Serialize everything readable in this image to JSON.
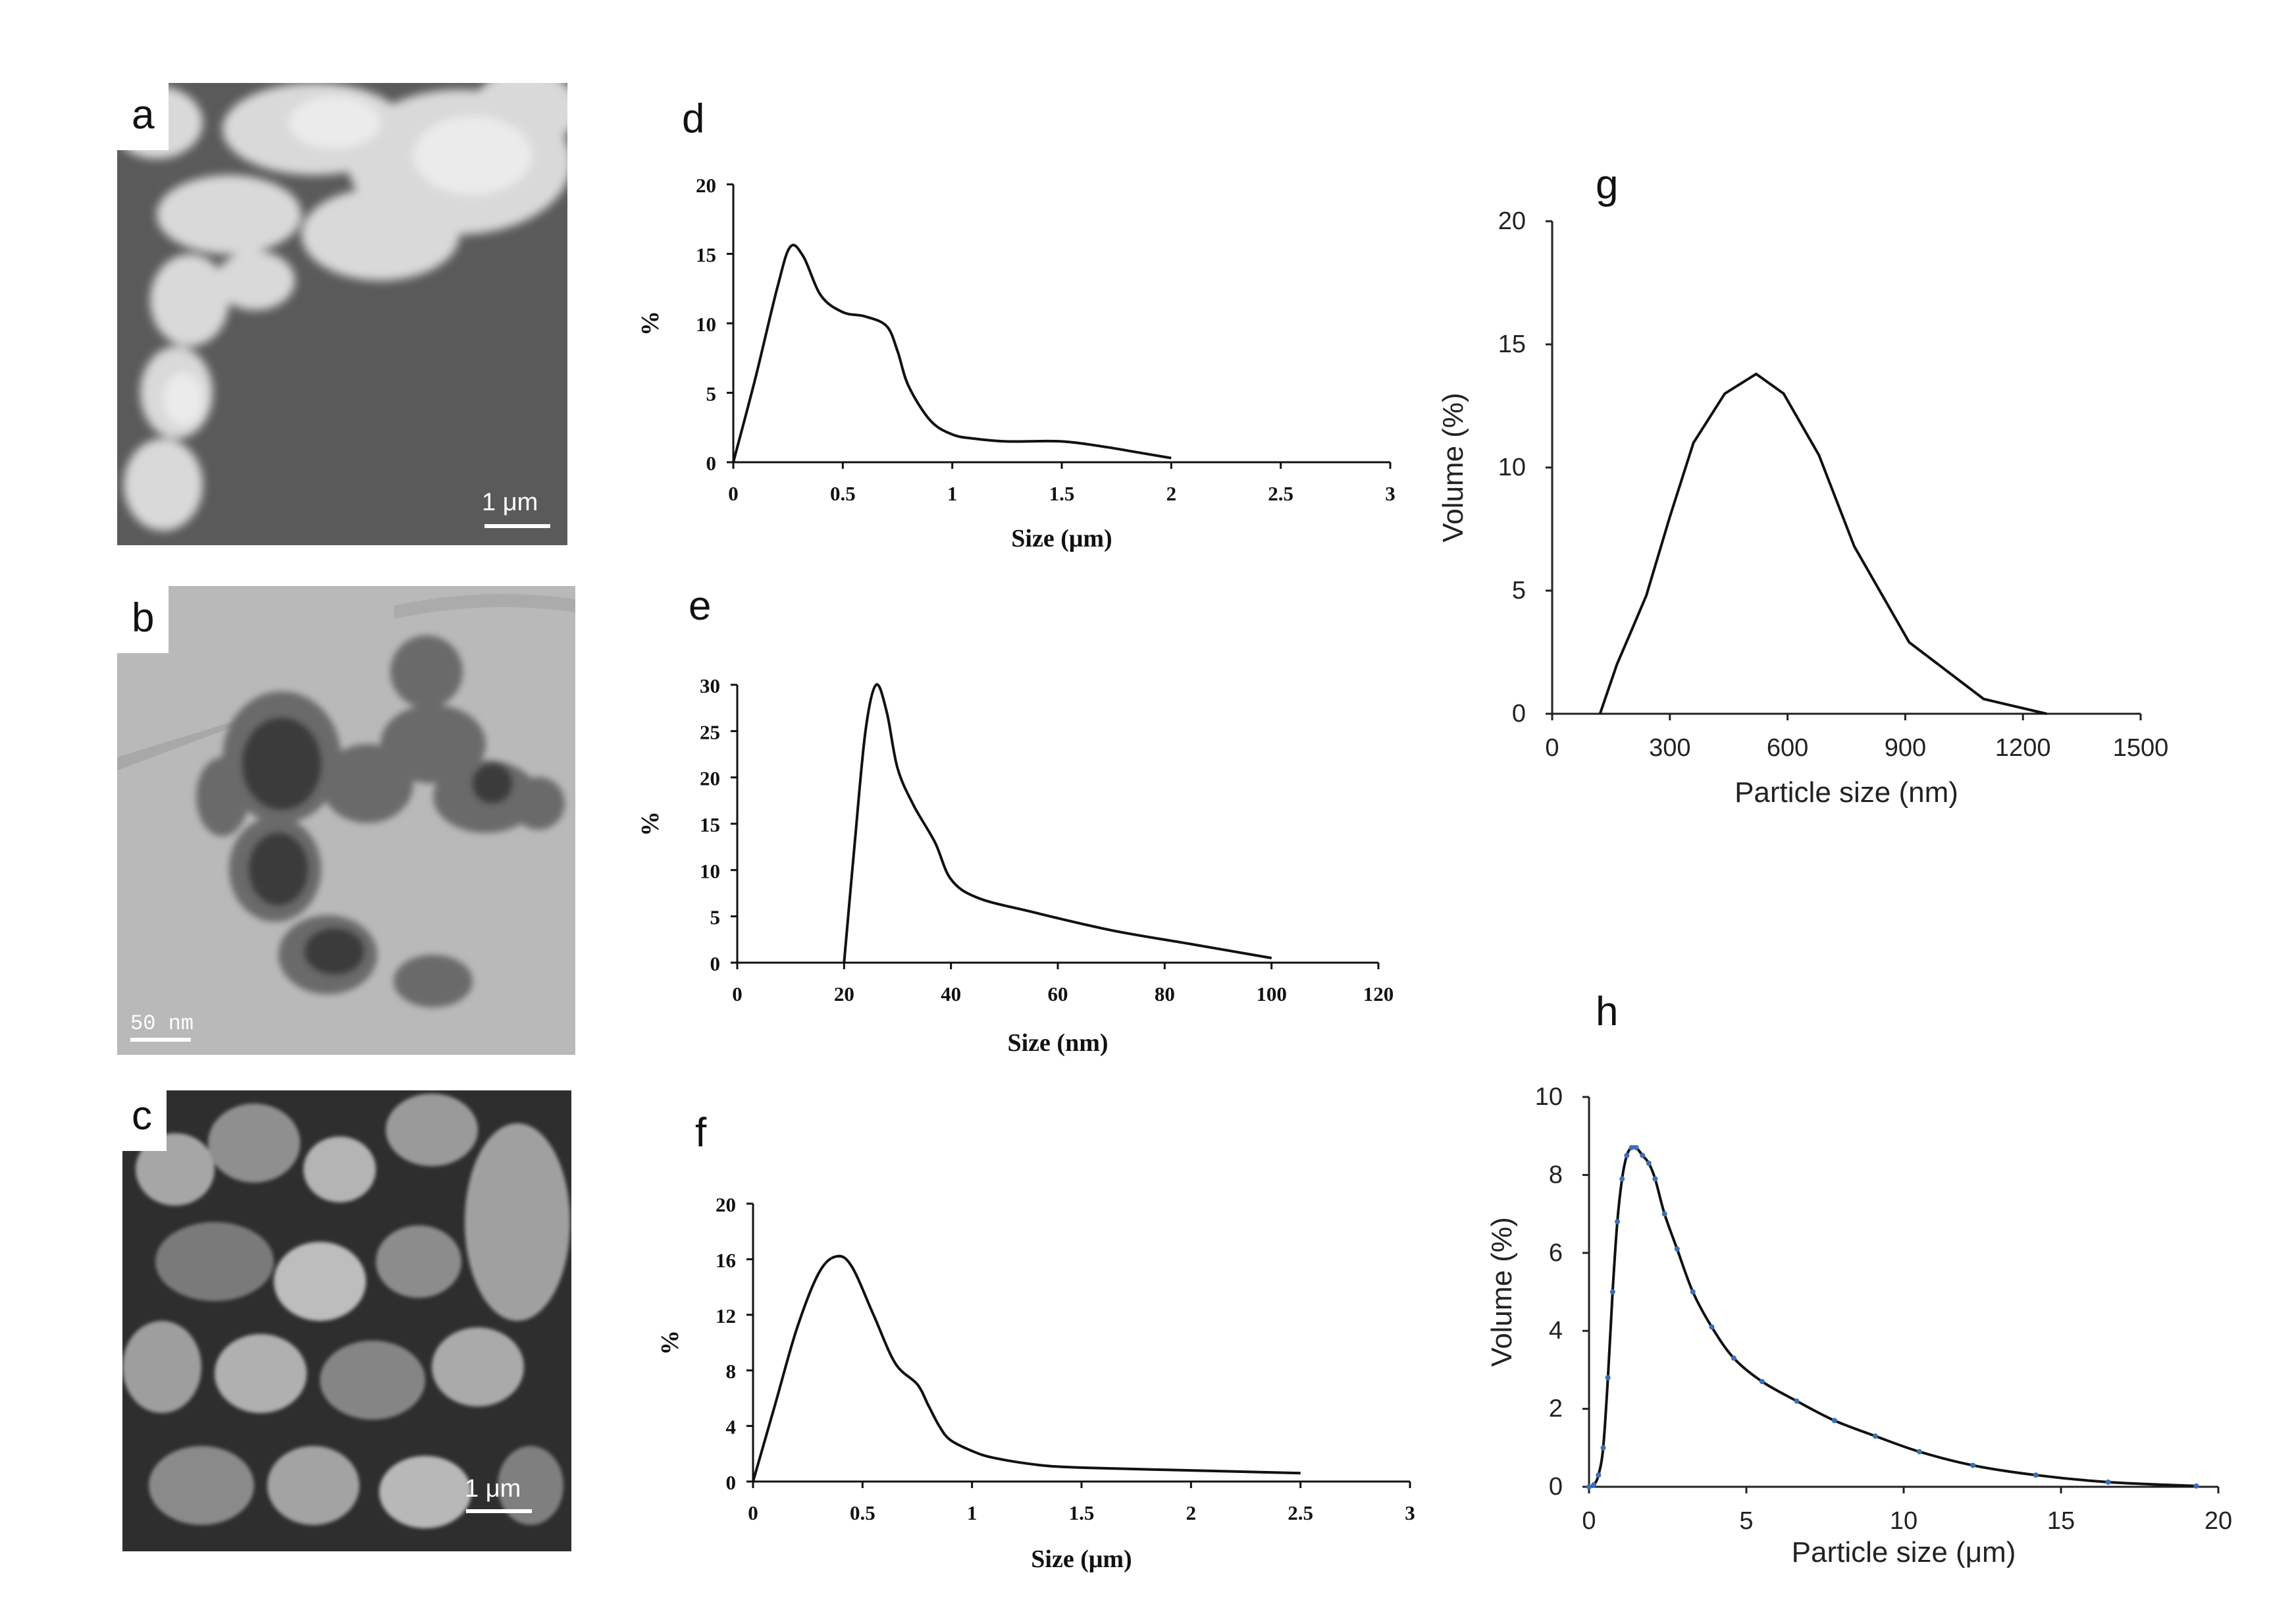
{
  "panels": {
    "a": {
      "label": "a",
      "scale": "1 μm"
    },
    "b": {
      "label": "b",
      "scale": "50 nm"
    },
    "c": {
      "label": "c",
      "scale": "1 μm"
    },
    "d": {
      "label": "d"
    },
    "e": {
      "label": "e"
    },
    "f": {
      "label": "f"
    },
    "g": {
      "label": "g"
    },
    "h": {
      "label": "h"
    }
  },
  "chart_data": [
    {
      "id": "d",
      "type": "line",
      "title": "",
      "xlabel": "Size (μm)",
      "ylabel": "%",
      "xlim": [
        0,
        3
      ],
      "ylim": [
        0,
        20
      ],
      "xticks": [
        0,
        0.5,
        1,
        1.5,
        2,
        2.5,
        3
      ],
      "xtick_labels": [
        "0",
        "0.5",
        "1",
        "1.5",
        "2",
        "2.5",
        "3"
      ],
      "yticks": [
        0,
        5,
        10,
        15,
        20
      ],
      "ytick_labels": [
        "0",
        "5",
        "10",
        "15",
        "20"
      ],
      "x": [
        0,
        0.1,
        0.2,
        0.26,
        0.32,
        0.4,
        0.5,
        0.6,
        0.7,
        0.75,
        0.8,
        0.9,
        1.0,
        1.1,
        1.25,
        1.5,
        1.7,
        1.85,
        2.0
      ],
      "y": [
        0,
        6,
        12.5,
        15.5,
        14.8,
        12,
        10.8,
        10.5,
        9.8,
        8,
        5.5,
        3,
        2,
        1.7,
        1.5,
        1.5,
        1.1,
        0.7,
        0.3
      ]
    },
    {
      "id": "e",
      "type": "line",
      "title": "",
      "xlabel": "Size (nm)",
      "ylabel": "%",
      "xlim": [
        0,
        120
      ],
      "ylim": [
        0,
        30
      ],
      "xticks": [
        0,
        20,
        40,
        60,
        80,
        100,
        120
      ],
      "xtick_labels": [
        "0",
        "20",
        "40",
        "60",
        "80",
        "100",
        "120"
      ],
      "yticks": [
        0,
        5,
        10,
        15,
        20,
        25,
        30
      ],
      "ytick_labels": [
        "0",
        "5",
        "10",
        "15",
        "20",
        "25",
        "30"
      ],
      "x": [
        20,
        22,
        24,
        26,
        28,
        30,
        33,
        37,
        40,
        45,
        55,
        70,
        85,
        100
      ],
      "y": [
        0,
        13,
        25,
        30,
        27,
        21,
        17,
        13,
        9,
        7,
        5.5,
        3.5,
        2,
        0.5
      ]
    },
    {
      "id": "f",
      "type": "line",
      "title": "",
      "xlabel": "Size (μm)",
      "ylabel": "%",
      "xlim": [
        0,
        3
      ],
      "ylim": [
        0,
        20
      ],
      "xticks": [
        0,
        0.5,
        1,
        1.5,
        2,
        2.5,
        3
      ],
      "xtick_labels": [
        "0",
        "0.5",
        "1",
        "1.5",
        "2",
        "2.5",
        "3"
      ],
      "yticks": [
        0,
        4,
        8,
        12,
        16,
        20
      ],
      "ytick_labels": [
        "0",
        "4",
        "8",
        "12",
        "16",
        "20"
      ],
      "x": [
        0,
        0.1,
        0.2,
        0.3,
        0.38,
        0.45,
        0.55,
        0.65,
        0.75,
        0.8,
        0.85,
        0.9,
        1.0,
        1.1,
        1.3,
        1.5,
        2.0,
        2.5
      ],
      "y": [
        0,
        5.5,
        11,
        15,
        16.2,
        15.5,
        12,
        8.5,
        7,
        5.5,
        4,
        3,
        2.2,
        1.7,
        1.2,
        1.0,
        0.8,
        0.6
      ]
    },
    {
      "id": "g",
      "type": "line",
      "title": "",
      "xlabel": "Particle size (nm)",
      "ylabel": "Volume (%)",
      "xlim": [
        0,
        1500
      ],
      "ylim": [
        0,
        20
      ],
      "xticks": [
        0,
        300,
        600,
        900,
        1200,
        1500
      ],
      "xtick_labels": [
        "0",
        "300",
        "600",
        "900",
        "1200",
        "1500"
      ],
      "yticks": [
        0,
        5,
        10,
        15,
        20
      ],
      "ytick_labels": [
        "0",
        "5",
        "10",
        "15",
        "20"
      ],
      "x": [
        122,
        165,
        200,
        240,
        300,
        360,
        440,
        520,
        590,
        680,
        770,
        910,
        1100,
        1260
      ],
      "y": [
        0,
        2,
        3.3,
        4.8,
        8,
        11,
        13,
        13.8,
        13,
        10.5,
        6.8,
        2.9,
        0.6,
        0
      ]
    },
    {
      "id": "h",
      "type": "line",
      "title": "",
      "xlabel": "Particle size (μm)",
      "ylabel": "Volume (%)",
      "xlim": [
        0,
        20
      ],
      "ylim": [
        0,
        10
      ],
      "xticks": [
        0,
        5,
        10,
        15,
        20
      ],
      "xtick_labels": [
        "0",
        "5",
        "10",
        "15",
        "20"
      ],
      "yticks": [
        0,
        2,
        4,
        6,
        8,
        10
      ],
      "ytick_labels": [
        "0",
        "2",
        "4",
        "6",
        "8",
        "10"
      ],
      "markers": true,
      "x": [
        0,
        0.15,
        0.3,
        0.45,
        0.6,
        0.75,
        0.9,
        1.05,
        1.2,
        1.35,
        1.5,
        1.7,
        1.9,
        2.1,
        2.4,
        2.8,
        3.3,
        3.9,
        4.6,
        5.5,
        6.6,
        7.8,
        9.1,
        10.5,
        12.2,
        14.2,
        16.5,
        19.3
      ],
      "y": [
        0,
        0.05,
        0.3,
        1.0,
        2.8,
        5.0,
        6.8,
        7.9,
        8.5,
        8.7,
        8.7,
        8.5,
        8.3,
        7.9,
        7.0,
        6.1,
        5.0,
        4.1,
        3.3,
        2.7,
        2.2,
        1.7,
        1.3,
        0.9,
        0.55,
        0.3,
        0.12,
        0.02
      ]
    }
  ]
}
